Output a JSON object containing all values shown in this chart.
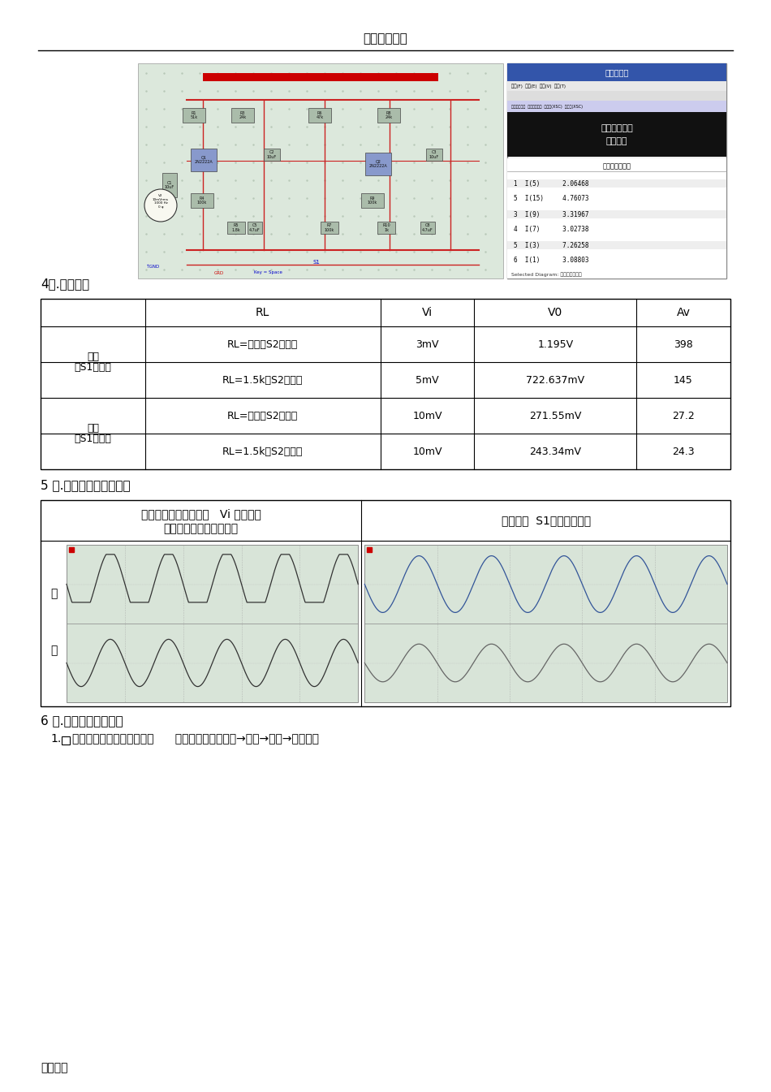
{
  "page_title": "实用标准文案",
  "footer_text": "精彩文档",
  "section4_title": "4、.交流测试",
  "table_headers": [
    "",
    "RL",
    "Vi",
    "V0",
    "Av"
  ],
  "row1_col0": "开环",
  "row1_col0b": "（S1打开）",
  "row3_col0": "闭环",
  "row3_col0b": "（S1闭合）",
  "row1_rl": "RL=无穷（S2打开）",
  "row2_rl": "RL=1.5k（S2闭合）",
  "row3_rl": "RL=无穷（S2打开）",
  "row4_rl": "RL=1.5k（S2闭合）",
  "row1_vi": "3mV",
  "row2_vi": "5mV",
  "row3_vi": "10mV",
  "row4_vi": "10mV",
  "row1_v0": "1.195V",
  "row2_v0": "722.637mV",
  "row3_v0": "271.55mV",
  "row4_v0": "243.34mV",
  "row1_av": "398",
  "row2_av": "145",
  "row3_av": "27.2",
  "row4_av": "24.3",
  "section5_title": "5 、.负反馈对失真的改善",
  "panel_left_line1": "在开环情况下适当加大   Vi 的大小，",
  "panel_left_line2": "使其输出失真，记录波形",
  "panel_right_header": "闭合开关  S1，并记录波形",
  "wave_label1": "波",
  "wave_label2": "形",
  "section6_title": "6 、.测试放大频率特性",
  "section6_text": "如图所示，进入交流分析：      在菜单中选取：仿真→运行→分析→交流分析",
  "bg_color": "#ffffff",
  "line_color": "#000000",
  "circuit_title": "查看记录仪",
  "circuit_menu": "文件(F)  编辑(E)  视图(V)  工具(T)",
  "circuit_subtitle1": "实验三负反馈",
  "circuit_subtitle2": "直流工作",
  "circuit_table_title": "直流工作点分析",
  "circuit_rows": [
    "1  I(5)      2.06468",
    "5  I(15)     4.76073",
    "3  I(9)      3.31967",
    "4  I(7)      3.02738",
    "5  I(3)      7.26258",
    "6  I(1)      3.08803"
  ],
  "circuit_footer": "Selected Diagram: 直流工作点分析"
}
